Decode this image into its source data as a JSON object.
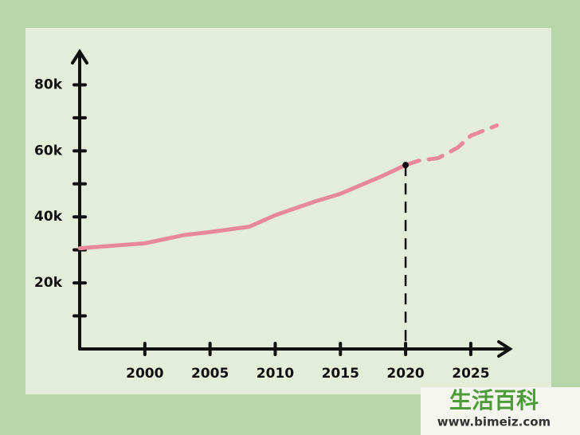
{
  "chart_data": {
    "type": "line",
    "x": [
      1995,
      2000,
      2003,
      2005,
      2008,
      2010,
      2013,
      2015,
      2018,
      2020,
      2021,
      2022.5,
      2024,
      2025,
      2027
    ],
    "series": [
      {
        "color": "#e8899a",
        "dash": false,
        "values": [
          30500,
          32000,
          34500,
          35400,
          37000,
          40500,
          44600,
          47000,
          52000,
          55700,
          null,
          null,
          null,
          null,
          null
        ]
      },
      {
        "color": "#e8899a",
        "dash": true,
        "values": [
          null,
          null,
          null,
          null,
          null,
          null,
          null,
          null,
          null,
          55700,
          57000,
          57800,
          61000,
          64600,
          67700
        ]
      }
    ],
    "highlight": {
      "x": 2020,
      "value": 55700
    },
    "xlim": [
      1995,
      2028
    ],
    "xticks": [
      2000,
      2005,
      2010,
      2015,
      2020,
      2025
    ],
    "ylim": [
      0,
      90000
    ],
    "yticks": [
      {
        "value": 20000,
        "label": "20k"
      },
      {
        "value": 40000,
        "label": "40k"
      },
      {
        "value": 60000,
        "label": "60k"
      },
      {
        "value": 80000,
        "label": "80k"
      }
    ],
    "yminor": [
      10000,
      30000,
      50000,
      70000
    ]
  },
  "watermark": {
    "title": "生活百科",
    "url": "www.bimeiz.com"
  }
}
